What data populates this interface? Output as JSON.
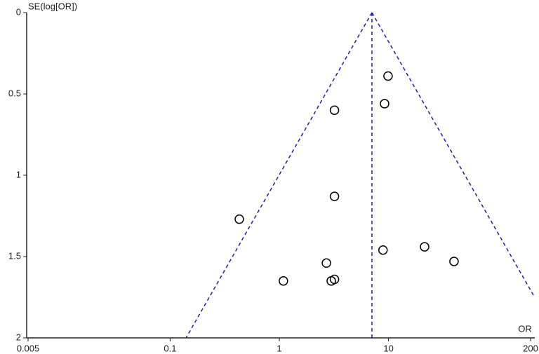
{
  "chart_data": {
    "type": "scatter",
    "y_label": "SE(log[OR])",
    "x_label": "OR",
    "x": [
      9.9,
      9.2,
      3.2,
      3.2,
      0.43,
      8.9,
      21.4,
      39.8,
      2.7,
      1.09,
      2.99,
      3.2
    ],
    "values": [
      0.39,
      0.56,
      0.6,
      1.13,
      1.27,
      1.46,
      1.44,
      1.53,
      1.54,
      1.65,
      1.65,
      1.64
    ],
    "color": "#000000",
    "xlim": [
      0.005,
      200
    ],
    "xticks": [
      0.005,
      0.1,
      1,
      10,
      200
    ],
    "xlog": true,
    "ylim": [
      0,
      2
    ],
    "yticks": [
      0,
      0.5,
      1,
      1.5,
      2
    ],
    "y_inverted": true,
    "pooled_or": 7.05,
    "funnel_z": 1.96,
    "funnel_color": "#1f1fa8"
  }
}
